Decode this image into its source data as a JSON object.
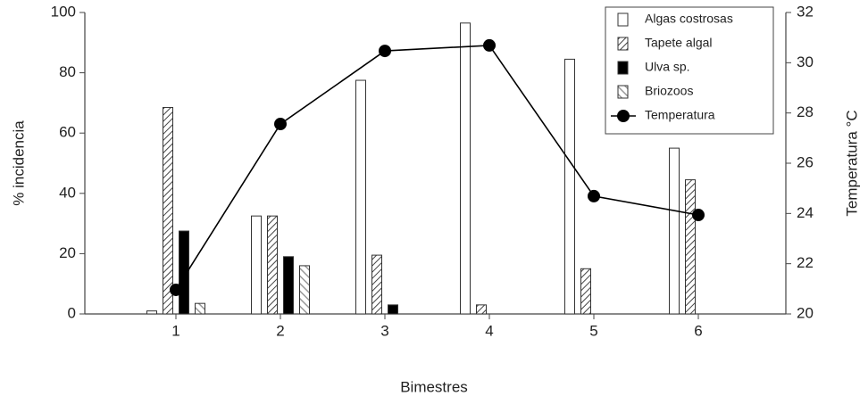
{
  "chart_data": {
    "type": "bar",
    "categories": [
      "1",
      "2",
      "3",
      "4",
      "5",
      "6"
    ],
    "x_label": "Bimestres",
    "y_label": "% incidencia",
    "y2_label": "Temperatura °C",
    "ylim": [
      0,
      100
    ],
    "yticks": [
      0,
      20,
      40,
      60,
      80,
      100
    ],
    "y2lim": [
      20,
      32
    ],
    "y2ticks": [
      20,
      22,
      24,
      26,
      28,
      30,
      32
    ],
    "legend": "top-right",
    "series": [
      {
        "name": "Algas costrosas",
        "type": "bar",
        "color": "#ffffff",
        "hatch": false,
        "values": [
          1,
          32.5,
          77.5,
          96.5,
          84.5,
          55
        ]
      },
      {
        "name": "Tapete algal",
        "type": "bar",
        "color": "#444444",
        "hatch": true,
        "values": [
          68.5,
          32.5,
          19.5,
          3,
          15,
          44.5
        ]
      },
      {
        "name": "Ulva sp.",
        "type": "bar",
        "color": "#000000",
        "hatch": false,
        "values": [
          27.5,
          19,
          3,
          0,
          0,
          0
        ]
      },
      {
        "name": "Briozoos",
        "type": "bar",
        "color": "#999999",
        "hatch": true,
        "values": [
          3.5,
          16,
          0,
          0,
          0,
          0
        ]
      },
      {
        "name": "Temperatura",
        "type": "line",
        "axis": "y2",
        "color": "#000000",
        "values": [
          20.96,
          27.56,
          30.47,
          30.69,
          24.69,
          23.94
        ]
      }
    ]
  }
}
